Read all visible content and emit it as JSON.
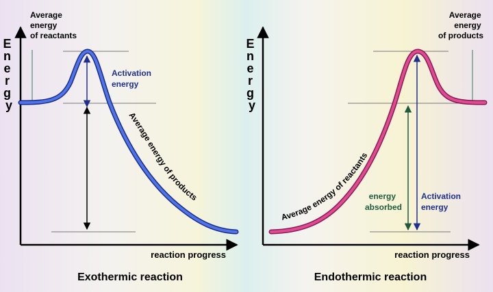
{
  "exothermic": {
    "y_axis_label": "Energy",
    "x_axis_label": "reaction progress",
    "caption": "Exothermic reaction",
    "reactants_label_line1": "Average",
    "reactants_label_line2": "energy",
    "reactants_label_line3": "of reactants",
    "activation_line1": "Activation",
    "activation_line2": "energy",
    "curve_label": "Average energy of products"
  },
  "endothermic": {
    "y_axis_label": "Energy",
    "x_axis_label": "reaction progress",
    "caption": "Endothermic reaction",
    "products_label_line1": "Average",
    "products_label_line2": "energy",
    "products_label_line3": "of products",
    "curve_label": "Average energy of reactants",
    "absorbed_line1": "energy",
    "absorbed_line2": "absorbed",
    "activation_line1": "Activation",
    "activation_line2": "energy"
  },
  "colors": {
    "exo_curve": "#3f5fd8",
    "endo_curve": "#d83a86",
    "activation_text": "#1f2f8f",
    "absorbed_text": "#1f5a3f",
    "axis": "#000000"
  }
}
